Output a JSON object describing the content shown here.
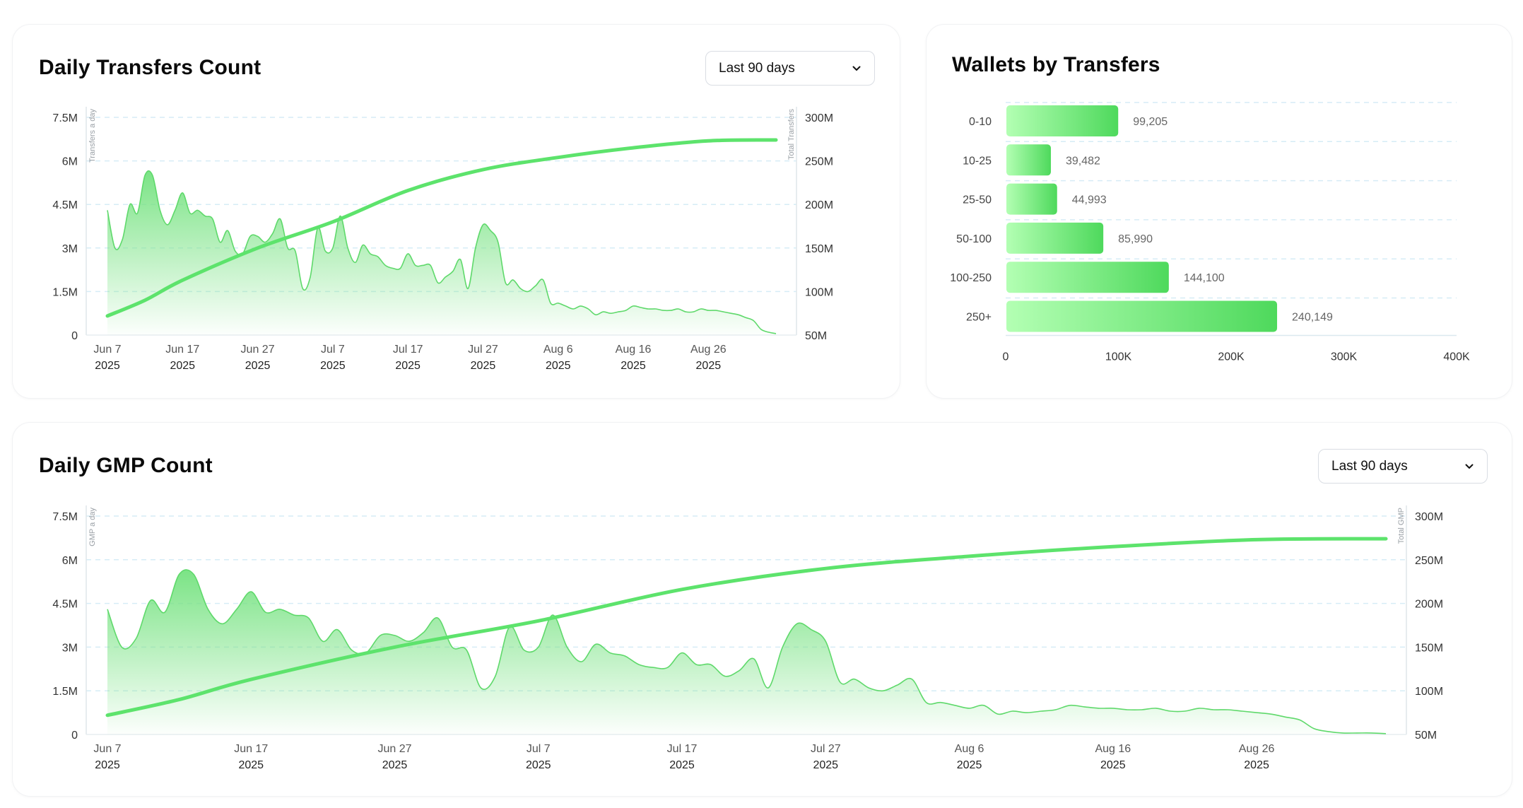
{
  "dropdown_chevron_icon": "chevron-down-icon",
  "colors": {
    "accent": "#5de36c",
    "area_top": "#7ee387",
    "bar_start": "#b3ffb3",
    "bar_end": "#4ed95c",
    "grid": "#d6ecf6",
    "axis_text": "#555555",
    "value_text": "#666666",
    "axis_title_text": "#9aa0a6"
  },
  "panels": {
    "transfers": {
      "title": "Daily Transfers Count",
      "range_select": "Last 90 days"
    },
    "wallets": {
      "title": "Wallets by Transfers"
    },
    "gmp": {
      "title": "Daily GMP Count",
      "range_select": "Last 90 days"
    }
  },
  "chart_data": [
    {
      "id": "transfers",
      "type": "area",
      "title": "Daily Transfers Count",
      "left_axis": {
        "label": "Transfers a day",
        "ticks": [
          "0",
          "1.5M",
          "3M",
          "4.5M",
          "6M",
          "7.5M"
        ],
        "values": [
          0,
          1.5,
          3,
          4.5,
          6,
          7.5
        ],
        "range": [
          0,
          7.5
        ],
        "unit": "M"
      },
      "right_axis": {
        "label": "Total Transfers",
        "ticks": [
          "50M",
          "100M",
          "150M",
          "200M",
          "250M",
          "300M"
        ],
        "values": [
          50,
          100,
          150,
          200,
          250,
          300
        ],
        "range": [
          50,
          300
        ],
        "unit": "M"
      },
      "x_ticks": [
        {
          "day": 0,
          "label": "Jun 7",
          "year": "2025"
        },
        {
          "day": 10,
          "label": "Jun 17",
          "year": "2025"
        },
        {
          "day": 20,
          "label": "Jun 27",
          "year": "2025"
        },
        {
          "day": 30,
          "label": "Jul 7",
          "year": "2025"
        },
        {
          "day": 40,
          "label": "Jul 17",
          "year": "2025"
        },
        {
          "day": 50,
          "label": "Jul 27",
          "year": "2025"
        },
        {
          "day": 60,
          "label": "Aug 6",
          "year": "2025"
        },
        {
          "day": 70,
          "label": "Aug 16",
          "year": "2025"
        },
        {
          "day": 80,
          "label": "Aug 26",
          "year": "2025"
        }
      ],
      "x_range": [
        0,
        89
      ],
      "series": [
        {
          "role": "daily",
          "values": [
            4.3,
            3.0,
            3.3,
            4.5,
            4.2,
            5.5,
            5.5,
            4.3,
            3.8,
            4.3,
            4.9,
            4.2,
            4.3,
            4.1,
            4.0,
            3.2,
            3.6,
            2.9,
            2.8,
            3.4,
            3.4,
            3.2,
            3.5,
            4.0,
            3.0,
            2.9,
            1.6,
            2.0,
            3.7,
            2.9,
            3.0,
            4.1,
            3.0,
            2.5,
            3.1,
            2.8,
            2.7,
            2.4,
            2.3,
            2.3,
            2.8,
            2.4,
            2.4,
            2.4,
            1.8,
            2.0,
            2.2,
            2.6,
            1.6,
            3.0,
            3.8,
            3.6,
            3.2,
            1.8,
            1.9,
            1.6,
            1.5,
            1.7,
            1.9,
            1.1,
            1.1,
            1.0,
            0.9,
            1.0,
            0.9,
            0.7,
            0.8,
            0.75,
            0.8,
            0.85,
            1.0,
            0.95,
            0.9,
            0.9,
            0.85,
            0.85,
            0.9,
            0.8,
            0.8,
            0.9,
            0.85,
            0.85,
            0.8,
            0.75,
            0.7,
            0.6,
            0.5,
            0.2,
            0.1,
            0.05
          ]
        },
        {
          "role": "cumulative",
          "values": [
            {
              "day": 0,
              "value": 72
            },
            {
              "day": 5,
              "value": 90
            },
            {
              "day": 10,
              "value": 113
            },
            {
              "day": 20,
              "value": 150
            },
            {
              "day": 30,
              "value": 180
            },
            {
              "day": 40,
              "value": 216
            },
            {
              "day": 50,
              "value": 240
            },
            {
              "day": 60,
              "value": 254
            },
            {
              "day": 70,
              "value": 265
            },
            {
              "day": 80,
              "value": 273
            },
            {
              "day": 89,
              "value": 274
            }
          ]
        }
      ]
    },
    {
      "id": "wallets",
      "type": "bar",
      "orientation": "horizontal",
      "title": "Wallets by Transfers",
      "categories": [
        "0-10",
        "10-25",
        "25-50",
        "50-100",
        "100-250",
        "250+"
      ],
      "values": [
        99205,
        39482,
        44993,
        85990,
        144100,
        240149
      ],
      "value_labels": [
        "99,205",
        "39,482",
        "44,993",
        "85,990",
        "144,100",
        "240,149"
      ],
      "x_ticks": [
        "0",
        "100K",
        "200K",
        "300K",
        "400K"
      ],
      "x_tick_values": [
        0,
        100000,
        200000,
        300000,
        400000
      ],
      "xlim": [
        0,
        400000
      ]
    },
    {
      "id": "gmp",
      "type": "area",
      "title": "Daily GMP Count",
      "left_axis": {
        "label": "GMP a day",
        "ticks": [
          "0",
          "1.5M",
          "3M",
          "4.5M",
          "6M",
          "7.5M"
        ],
        "values": [
          0,
          1.5,
          3,
          4.5,
          6,
          7.5
        ],
        "range": [
          0,
          7.5
        ],
        "unit": "M"
      },
      "right_axis": {
        "label": "Total GMP",
        "ticks": [
          "50M",
          "100M",
          "150M",
          "200M",
          "250M",
          "300M"
        ],
        "values": [
          50,
          100,
          150,
          200,
          250,
          300
        ],
        "range": [
          50,
          300
        ],
        "unit": "M"
      },
      "x_ticks": [
        {
          "day": 0,
          "label": "Jun 7",
          "year": "2025"
        },
        {
          "day": 10,
          "label": "Jun 17",
          "year": "2025"
        },
        {
          "day": 20,
          "label": "Jun 27",
          "year": "2025"
        },
        {
          "day": 30,
          "label": "Jul 7",
          "year": "2025"
        },
        {
          "day": 40,
          "label": "Jul 17",
          "year": "2025"
        },
        {
          "day": 50,
          "label": "Jul 27",
          "year": "2025"
        },
        {
          "day": 60,
          "label": "Aug 6",
          "year": "2025"
        },
        {
          "day": 70,
          "label": "Aug 16",
          "year": "2025"
        },
        {
          "day": 80,
          "label": "Aug 26",
          "year": "2025"
        }
      ],
      "x_range": [
        0,
        89
      ],
      "series": [
        {
          "role": "daily",
          "values": [
            4.3,
            3.0,
            3.3,
            4.6,
            4.2,
            5.5,
            5.5,
            4.3,
            3.8,
            4.3,
            4.9,
            4.2,
            4.3,
            4.1,
            4.0,
            3.2,
            3.6,
            2.9,
            2.8,
            3.4,
            3.4,
            3.2,
            3.5,
            4.0,
            3.0,
            2.9,
            1.6,
            2.0,
            3.7,
            2.9,
            3.0,
            4.1,
            3.0,
            2.5,
            3.1,
            2.8,
            2.7,
            2.4,
            2.3,
            2.3,
            2.8,
            2.4,
            2.4,
            2.0,
            2.2,
            2.6,
            1.6,
            3.0,
            3.8,
            3.6,
            3.2,
            1.8,
            1.9,
            1.6,
            1.5,
            1.7,
            1.9,
            1.1,
            1.1,
            1.0,
            0.9,
            1.0,
            0.7,
            0.8,
            0.75,
            0.8,
            0.85,
            1.0,
            0.95,
            0.9,
            0.9,
            0.85,
            0.85,
            0.9,
            0.8,
            0.8,
            0.9,
            0.85,
            0.85,
            0.8,
            0.75,
            0.7,
            0.6,
            0.5,
            0.2,
            0.1,
            0.05,
            0.05,
            0.05,
            0.03
          ]
        },
        {
          "role": "cumulative",
          "values": [
            {
              "day": 0,
              "value": 72
            },
            {
              "day": 5,
              "value": 90
            },
            {
              "day": 10,
              "value": 113
            },
            {
              "day": 20,
              "value": 150
            },
            {
              "day": 30,
              "value": 180
            },
            {
              "day": 40,
              "value": 216
            },
            {
              "day": 50,
              "value": 240
            },
            {
              "day": 60,
              "value": 254
            },
            {
              "day": 70,
              "value": 265
            },
            {
              "day": 80,
              "value": 273
            },
            {
              "day": 89,
              "value": 274
            }
          ]
        }
      ]
    }
  ]
}
